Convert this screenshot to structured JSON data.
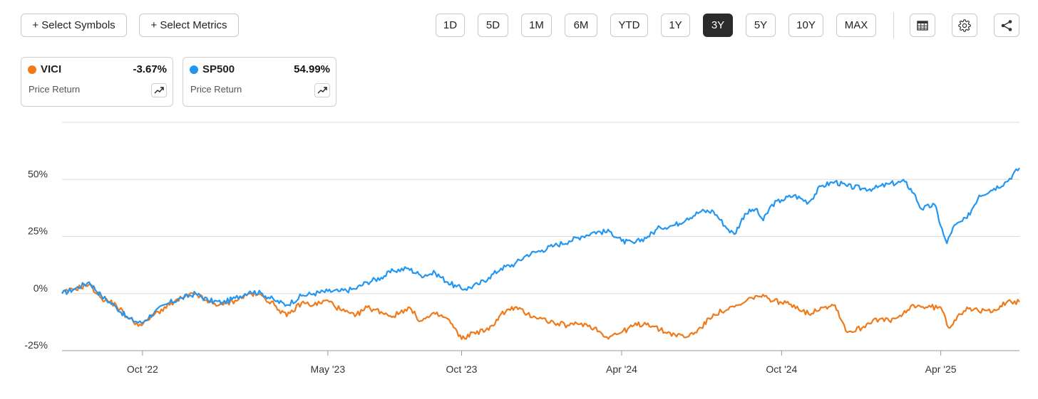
{
  "toolbar": {
    "select_symbols": "+ Select Symbols",
    "select_metrics": "+ Select Metrics",
    "ranges": [
      "1D",
      "5D",
      "1M",
      "6M",
      "YTD",
      "1Y",
      "3Y",
      "5Y",
      "10Y",
      "MAX"
    ],
    "active_range": "3Y",
    "icons": [
      "table-icon",
      "gear-icon",
      "share-icon"
    ]
  },
  "legend": [
    {
      "symbol": "VICI",
      "value": "-3.67%",
      "metric": "Price Return",
      "color": "#f07a1a",
      "icon": "trend-icon"
    },
    {
      "symbol": "SP500",
      "value": "54.99%",
      "metric": "Price Return",
      "color": "#2196f3",
      "icon": "trend-icon"
    }
  ],
  "chart_data": {
    "type": "line",
    "title": "",
    "xlabel": "",
    "ylabel": "",
    "x_ticks": [
      "Oct '22",
      "May '23",
      "Oct '23",
      "Apr '24",
      "Oct '24",
      "Apr '25"
    ],
    "y_ticks": [
      "-25%",
      "0%",
      "25%",
      "50%"
    ],
    "y_tick_values": [
      -25,
      0,
      25,
      50
    ],
    "ylim": [
      -25,
      75
    ],
    "grid": true,
    "x_axis_dates": [
      "2022-07-01",
      "2025-06-30"
    ],
    "x_tick_dates": [
      "2022-10-01",
      "2023-05-01",
      "2023-10-01",
      "2024-04-01",
      "2024-10-01",
      "2025-04-01"
    ],
    "series": [
      {
        "name": "SP500",
        "color": "#2196f3",
        "points": [
          [
            "2022-07-01",
            0
          ],
          [
            "2022-07-15",
            2
          ],
          [
            "2022-08-01",
            5
          ],
          [
            "2022-08-15",
            -1
          ],
          [
            "2022-09-01",
            -6
          ],
          [
            "2022-09-15",
            -11
          ],
          [
            "2022-09-30",
            -13
          ],
          [
            "2022-10-15",
            -8
          ],
          [
            "2022-11-01",
            -4
          ],
          [
            "2022-11-15",
            -2
          ],
          [
            "2022-12-01",
            0
          ],
          [
            "2022-12-15",
            -3
          ],
          [
            "2023-01-01",
            -4
          ],
          [
            "2023-01-15",
            -2
          ],
          [
            "2023-02-01",
            1
          ],
          [
            "2023-02-15",
            0
          ],
          [
            "2023-03-01",
            -3
          ],
          [
            "2023-03-15",
            -5
          ],
          [
            "2023-04-01",
            -1
          ],
          [
            "2023-04-15",
            0
          ],
          [
            "2023-05-01",
            1
          ],
          [
            "2023-05-15",
            1
          ],
          [
            "2023-06-01",
            2
          ],
          [
            "2023-06-15",
            5
          ],
          [
            "2023-07-01",
            7
          ],
          [
            "2023-07-15",
            10
          ],
          [
            "2023-08-01",
            11
          ],
          [
            "2023-08-15",
            8
          ],
          [
            "2023-09-01",
            9
          ],
          [
            "2023-09-15",
            5
          ],
          [
            "2023-09-25",
            3
          ],
          [
            "2023-10-05",
            2
          ],
          [
            "2023-10-20",
            4
          ],
          [
            "2023-11-01",
            7
          ],
          [
            "2023-11-15",
            11
          ],
          [
            "2023-12-01",
            13
          ],
          [
            "2023-12-15",
            17
          ],
          [
            "2024-01-01",
            19
          ],
          [
            "2024-01-15",
            21
          ],
          [
            "2024-02-01",
            23
          ],
          [
            "2024-02-15",
            25
          ],
          [
            "2024-03-01",
            27
          ],
          [
            "2024-03-20",
            27
          ],
          [
            "2024-04-01",
            23
          ],
          [
            "2024-04-15",
            22
          ],
          [
            "2024-05-01",
            25
          ],
          [
            "2024-05-15",
            29
          ],
          [
            "2024-06-01",
            30
          ],
          [
            "2024-06-15",
            33
          ],
          [
            "2024-07-01",
            36
          ],
          [
            "2024-07-15",
            36
          ],
          [
            "2024-08-01",
            28
          ],
          [
            "2024-08-08",
            26
          ],
          [
            "2024-08-20",
            35
          ],
          [
            "2024-09-01",
            37
          ],
          [
            "2024-09-10",
            32
          ],
          [
            "2024-09-20",
            39
          ],
          [
            "2024-10-01",
            41
          ],
          [
            "2024-10-15",
            43
          ],
          [
            "2024-11-01",
            40
          ],
          [
            "2024-11-15",
            47
          ],
          [
            "2024-12-01",
            49
          ],
          [
            "2024-12-15",
            47
          ],
          [
            "2025-01-01",
            46
          ],
          [
            "2025-01-15",
            46
          ],
          [
            "2025-02-01",
            48
          ],
          [
            "2025-02-19",
            49
          ],
          [
            "2025-03-01",
            44
          ],
          [
            "2025-03-10",
            37
          ],
          [
            "2025-03-25",
            39
          ],
          [
            "2025-04-04",
            26
          ],
          [
            "2025-04-08",
            22
          ],
          [
            "2025-04-15",
            29
          ],
          [
            "2025-05-01",
            33
          ],
          [
            "2025-05-15",
            43
          ],
          [
            "2025-06-01",
            46
          ],
          [
            "2025-06-15",
            49
          ],
          [
            "2025-06-30",
            55
          ]
        ]
      },
      {
        "name": "VICI",
        "color": "#f07a1a",
        "points": [
          [
            "2022-07-01",
            0
          ],
          [
            "2022-07-15",
            2
          ],
          [
            "2022-08-01",
            4
          ],
          [
            "2022-08-15",
            -2
          ],
          [
            "2022-09-01",
            -5
          ],
          [
            "2022-09-15",
            -11
          ],
          [
            "2022-09-30",
            -14
          ],
          [
            "2022-10-15",
            -9
          ],
          [
            "2022-11-01",
            -5
          ],
          [
            "2022-11-15",
            -2
          ],
          [
            "2022-12-01",
            0
          ],
          [
            "2022-12-15",
            -4
          ],
          [
            "2023-01-01",
            -5
          ],
          [
            "2023-01-15",
            -3
          ],
          [
            "2023-02-01",
            0
          ],
          [
            "2023-02-15",
            -1
          ],
          [
            "2023-03-01",
            -5
          ],
          [
            "2023-03-15",
            -10
          ],
          [
            "2023-04-01",
            -4
          ],
          [
            "2023-04-15",
            -5
          ],
          [
            "2023-05-01",
            -3
          ],
          [
            "2023-05-15",
            -7
          ],
          [
            "2023-06-01",
            -10
          ],
          [
            "2023-06-15",
            -6
          ],
          [
            "2023-07-01",
            -8
          ],
          [
            "2023-07-15",
            -10
          ],
          [
            "2023-08-01",
            -6
          ],
          [
            "2023-08-15",
            -12
          ],
          [
            "2023-09-01",
            -9
          ],
          [
            "2023-09-15",
            -11
          ],
          [
            "2023-10-01",
            -20
          ],
          [
            "2023-10-15",
            -17
          ],
          [
            "2023-11-01",
            -16
          ],
          [
            "2023-11-15",
            -9
          ],
          [
            "2023-12-01",
            -6
          ],
          [
            "2023-12-15",
            -9
          ],
          [
            "2024-01-01",
            -11
          ],
          [
            "2024-01-15",
            -13
          ],
          [
            "2024-02-01",
            -14
          ],
          [
            "2024-02-15",
            -13
          ],
          [
            "2024-03-01",
            -15
          ],
          [
            "2024-03-15",
            -19
          ],
          [
            "2024-04-01",
            -17
          ],
          [
            "2024-04-15",
            -14
          ],
          [
            "2024-05-01",
            -13
          ],
          [
            "2024-05-15",
            -16
          ],
          [
            "2024-06-01",
            -18
          ],
          [
            "2024-06-15",
            -19
          ],
          [
            "2024-07-01",
            -15
          ],
          [
            "2024-07-15",
            -9
          ],
          [
            "2024-08-01",
            -7
          ],
          [
            "2024-08-15",
            -5
          ],
          [
            "2024-09-01",
            -1
          ],
          [
            "2024-09-15",
            -2
          ],
          [
            "2024-10-01",
            -4
          ],
          [
            "2024-10-15",
            -5
          ],
          [
            "2024-11-01",
            -9
          ],
          [
            "2024-11-15",
            -6
          ],
          [
            "2024-12-01",
            -5
          ],
          [
            "2024-12-15",
            -17
          ],
          [
            "2025-01-01",
            -15
          ],
          [
            "2025-01-15",
            -11
          ],
          [
            "2025-02-01",
            -12
          ],
          [
            "2025-02-15",
            -10
          ],
          [
            "2025-03-01",
            -5
          ],
          [
            "2025-03-15",
            -6
          ],
          [
            "2025-04-01",
            -6
          ],
          [
            "2025-04-10",
            -15
          ],
          [
            "2025-04-20",
            -10
          ],
          [
            "2025-05-01",
            -6
          ],
          [
            "2025-05-15",
            -8
          ],
          [
            "2025-06-01",
            -7
          ],
          [
            "2025-06-15",
            -4
          ],
          [
            "2025-06-30",
            -3.67
          ]
        ]
      }
    ]
  }
}
